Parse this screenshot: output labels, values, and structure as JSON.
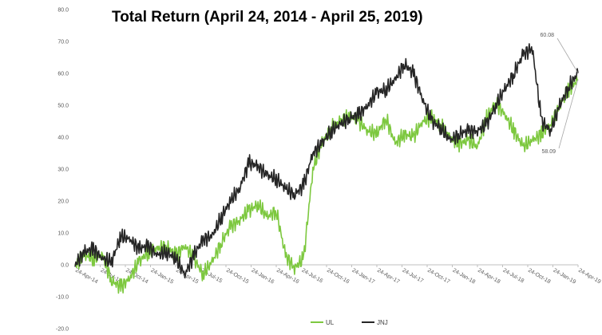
{
  "chart_data": {
    "type": "line",
    "title": "Total Return (April 24, 2014 - April 25, 2019)",
    "xlabel": "",
    "ylabel": "",
    "ylim": [
      -20,
      80
    ],
    "y_ticks": [
      "80.0",
      "70.0",
      "60.0",
      "50.0",
      "40.0",
      "30.0",
      "20.0",
      "10.0",
      "0.0",
      "-10.0",
      "-20.0"
    ],
    "x_tick_labels": [
      "24-Apr-14",
      "24-Jul-14",
      "24-Oct-14",
      "24-Jan-15",
      "24-Apr-15",
      "24-Jul-15",
      "24-Oct-15",
      "24-Jan-16",
      "24-Apr-16",
      "24-Jul-16",
      "24-Oct-16",
      "24-Jan-17",
      "24-Apr-17",
      "24-Jul-17",
      "24-Oct-17",
      "24-Jan-18",
      "24-Apr-18",
      "24-Jul-18",
      "24-Oct-18",
      "24-Jan-19",
      "24-Apr-19"
    ],
    "grid": false,
    "legend_position": "bottom",
    "series": [
      {
        "name": "UL",
        "color": "#7dc83f",
        "values": [
          0,
          3,
          2,
          3,
          -5,
          -7,
          -4,
          1,
          4,
          5,
          6,
          3,
          6,
          2,
          -3,
          1,
          7,
          12,
          14,
          17,
          19,
          15,
          17,
          3,
          -1,
          2,
          30,
          38,
          43,
          45,
          47,
          45,
          42,
          41,
          46,
          38,
          41,
          40,
          45,
          46,
          44,
          40,
          38,
          39,
          37,
          46,
          51,
          47,
          42,
          37,
          39,
          41,
          44,
          50,
          55,
          58.09
        ]
      },
      {
        "name": "JNJ",
        "color": "#262626",
        "values": [
          0,
          4,
          5,
          2,
          1,
          9,
          8,
          5,
          6,
          3,
          4,
          2,
          -3,
          3,
          8,
          9,
          15,
          20,
          24,
          32,
          31,
          28,
          27,
          24,
          22,
          25,
          35,
          38,
          42,
          44,
          46,
          47,
          50,
          54,
          55,
          58,
          63,
          60,
          52,
          45,
          43,
          39,
          41,
          42,
          42,
          44,
          50,
          55,
          60,
          66,
          68,
          45,
          42,
          50,
          56,
          60.08
        ]
      }
    ],
    "annotations": [
      {
        "text": "60.08",
        "series": "JNJ",
        "value": 60.08
      },
      {
        "text": "58.09",
        "series": "UL",
        "value": 58.09
      }
    ]
  }
}
